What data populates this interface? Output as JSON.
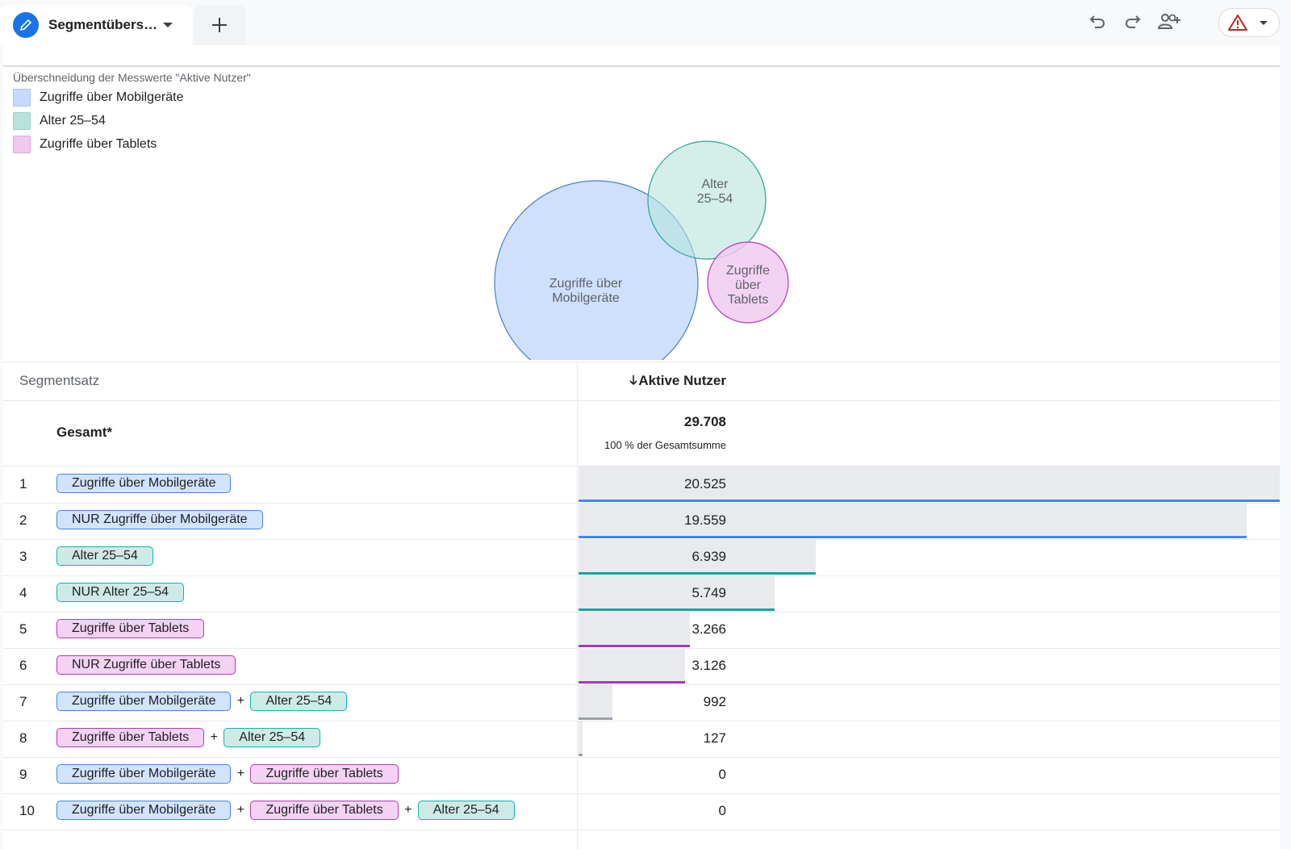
{
  "tab": {
    "label": "Segmentübers…"
  },
  "chart": {
    "title": "Überschneidung der Messwerte \"Aktive Nutzer\"",
    "legend": [
      {
        "label": "Zugriffe über Mobilgeräte",
        "color": "#c6dafc"
      },
      {
        "label": "Alter 25–54",
        "color": "#b8e2dc"
      },
      {
        "label": "Zugriffe über Tablets",
        "color": "#f0c8f0"
      }
    ],
    "circles": {
      "mobile": {
        "line1": "Zugriffe über",
        "line2": "Mobilgeräte"
      },
      "age": {
        "line1": "Alter",
        "line2": "25–54"
      },
      "tablet": {
        "line1": "Zugriffe",
        "line2": "über",
        "line3": "Tablets"
      }
    }
  },
  "table": {
    "col_segment": "Segmentsatz",
    "col_metric": "Aktive Nutzer",
    "sort_icon": "arrow-down-icon",
    "total": {
      "label": "Gesamt*",
      "value": "29.708",
      "sub": "100 % der Gesamtsumme"
    },
    "rows": [
      {
        "num": "1",
        "chips": [
          "Zugriffe über Mobilgeräte"
        ],
        "value": "20.525",
        "share": 1.0
      },
      {
        "num": "2",
        "chips": [
          "NUR Zugriffe über Mobilgeräte"
        ],
        "value": "19.559",
        "share": 0.953
      },
      {
        "num": "3",
        "chips": [
          "Alter 25–54"
        ],
        "value": "6.939",
        "share": 0.338
      },
      {
        "num": "4",
        "chips": [
          "NUR Alter 25–54"
        ],
        "value": "5.749",
        "share": 0.28
      },
      {
        "num": "5",
        "chips": [
          "Zugriffe über Tablets"
        ],
        "value": "3.266",
        "share": 0.159
      },
      {
        "num": "6",
        "chips": [
          "NUR Zugriffe über Tablets"
        ],
        "value": "3.126",
        "share": 0.152
      },
      {
        "num": "7",
        "chips": [
          "Zugriffe über Mobilgeräte",
          "Alter 25–54"
        ],
        "value": "992",
        "share": 0.048
      },
      {
        "num": "8",
        "chips": [
          "Zugriffe über Tablets",
          "Alter 25–54"
        ],
        "value": "127",
        "share": 0.006
      },
      {
        "num": "9",
        "chips": [
          "Zugriffe über Mobilgeräte",
          "Zugriffe über Tablets"
        ],
        "value": "0",
        "share": 0
      },
      {
        "num": "10",
        "chips": [
          "Zugriffe über Mobilgeräte",
          "Zugriffe über Tablets",
          "Alter 25–54"
        ],
        "value": "0",
        "share": 0
      }
    ],
    "plus": "+"
  },
  "colors": {
    "accent": "#1a73e8",
    "mobile_line": "#4285f4",
    "age_line": "#12a59a",
    "tablet_line": "#a43ab8",
    "combo_line": "#9aa0a6"
  }
}
